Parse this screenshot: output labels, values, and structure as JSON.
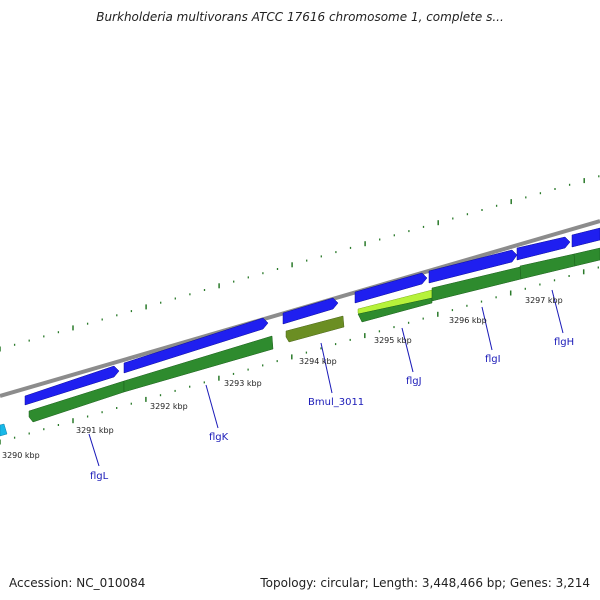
{
  "title": "Burkholderia multivorans ATCC 17616 chromosome 1, complete s...",
  "footer": {
    "accession": "Accession: NC_010084",
    "summary": "Topology: circular; Length: 3,448,466 bp; Genes: 3,214"
  },
  "colors": {
    "backbone": "#8c8c8c",
    "forward_gene": "#1f1ff0",
    "reverse_cds": "#2e8b2e",
    "highlight_cds": "#b6f23a",
    "olive_cds": "#6b8e23",
    "cyan_gene": "#18b8e8",
    "tick": "#2a7a2a",
    "gene_label": "#1a1ab8",
    "leader_line": "#1a1ab8"
  },
  "kbp_labels": [
    "3290 kbp",
    "3291 kbp",
    "3292 kbp",
    "3293 kbp",
    "3294 kbp",
    "3295 kbp",
    "3296 kbp",
    "3297 kbp"
  ],
  "gene_labels": [
    "flgL",
    "flgK",
    "Bmul_3011",
    "flgJ",
    "flgI",
    "flgH"
  ]
}
